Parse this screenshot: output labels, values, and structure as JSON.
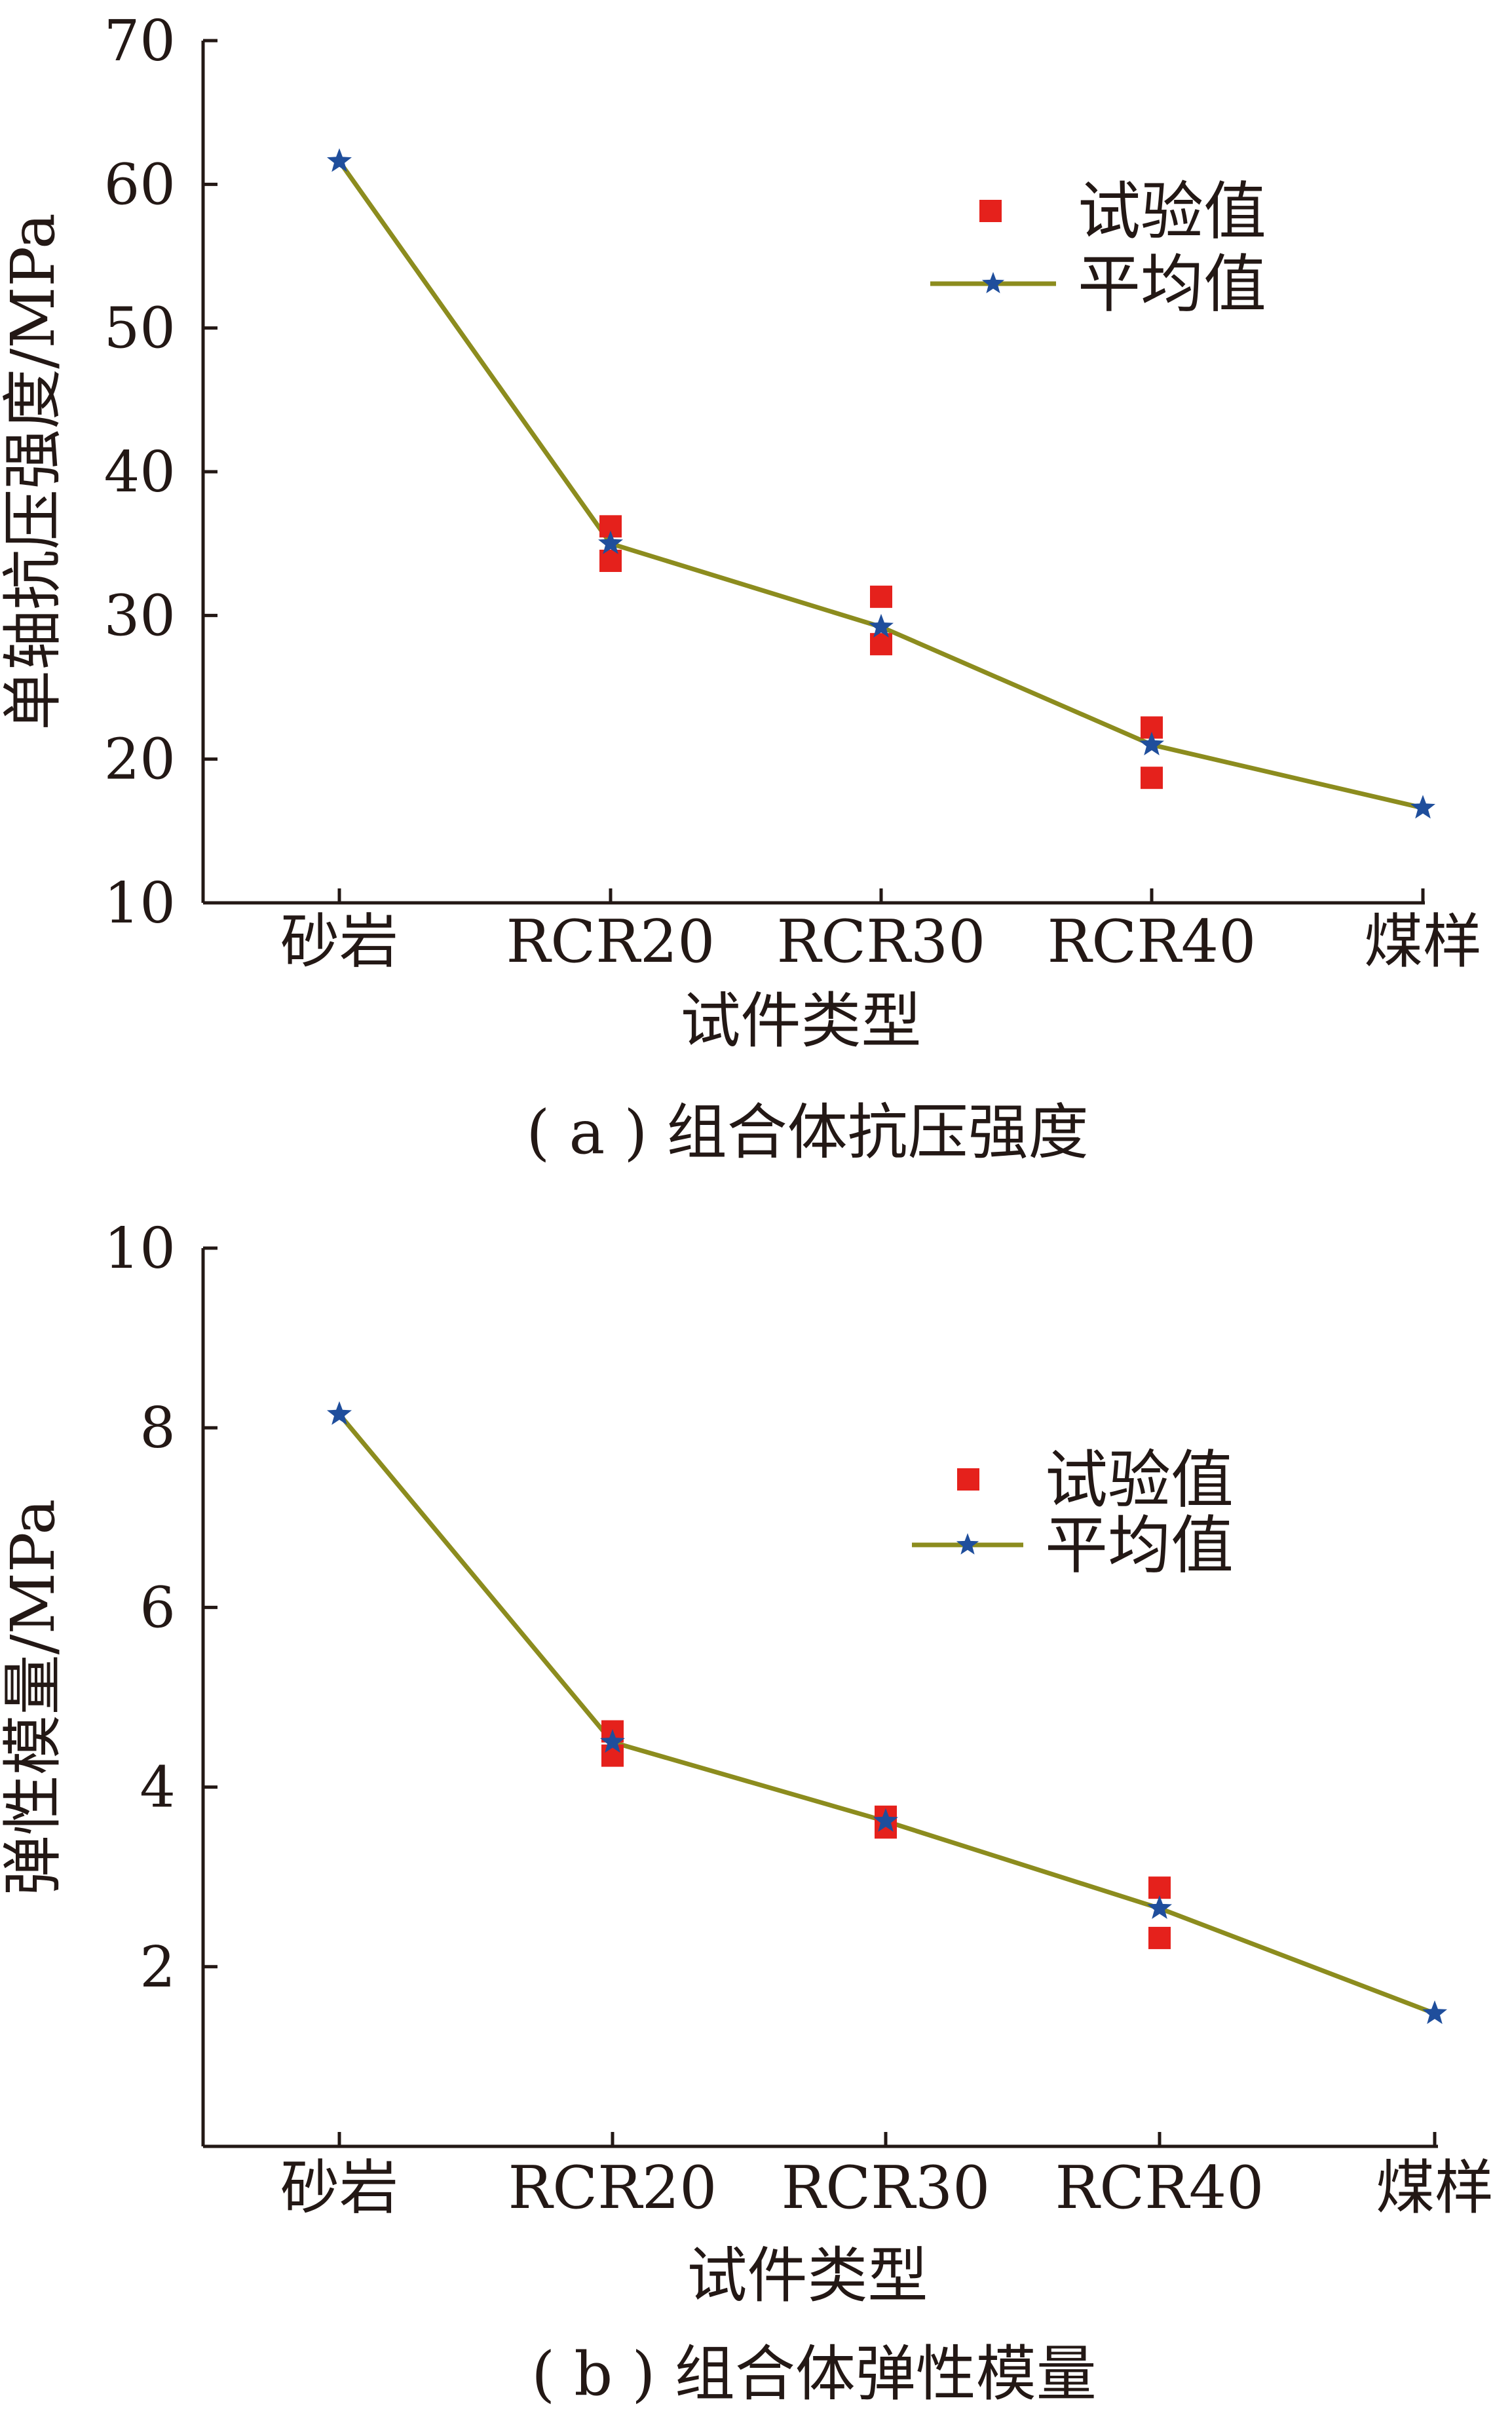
{
  "chart_data": [
    {
      "type": "line",
      "panel_label": "( a ) 组合体抗压强度",
      "xlabel": "试件类型",
      "ylabel": "单轴抗压强度/MPa",
      "categories": [
        "砂岩",
        "RCR20",
        "RCR30",
        "RCR40",
        "煤样"
      ],
      "yticks": [
        "10",
        "20",
        "30",
        "40",
        "50",
        "60",
        "70"
      ],
      "ylim": [
        10,
        70
      ],
      "legend": {
        "position": "top-right",
        "entries": [
          "试验值",
          "平均值"
        ]
      },
      "series": [
        {
          "name": "试验值",
          "kind": "scatter",
          "color": "#e5211c",
          "points": [
            {
              "category": "RCR20",
              "y": 36.2
            },
            {
              "category": "RCR20",
              "y": 33.8
            },
            {
              "category": "RCR30",
              "y": 31.3
            },
            {
              "category": "RCR30",
              "y": 28.0
            },
            {
              "category": "RCR40",
              "y": 22.2
            },
            {
              "category": "RCR40",
              "y": 18.7
            }
          ]
        },
        {
          "name": "平均值",
          "kind": "line",
          "color": "#8c8c1e",
          "marker_color": "#1f4e9c",
          "values": [
            61.6,
            35.0,
            29.2,
            21.0,
            16.6
          ]
        }
      ]
    },
    {
      "type": "line",
      "panel_label": "( b ) 组合体弹性模量",
      "xlabel": "试件类型",
      "ylabel": "弹性模量/MPa",
      "categories": [
        "砂岩",
        "RCR20",
        "RCR30",
        "RCR40",
        "煤样"
      ],
      "yticks": [
        "2",
        "4",
        "6",
        "8",
        "10"
      ],
      "ylim": [
        0,
        10
      ],
      "legend": {
        "position": "top-right",
        "entries": [
          "试验值",
          "平均值"
        ]
      },
      "series": [
        {
          "name": "试验值",
          "kind": "scatter",
          "color": "#e5211c",
          "points": [
            {
              "category": "RCR20",
              "y": 4.62
            },
            {
              "category": "RCR20",
              "y": 4.35
            },
            {
              "category": "RCR30",
              "y": 3.67
            },
            {
              "category": "RCR30",
              "y": 3.55
            },
            {
              "category": "RCR40",
              "y": 2.88
            },
            {
              "category": "RCR40",
              "y": 2.32
            }
          ]
        },
        {
          "name": "平均值",
          "kind": "line",
          "color": "#8c8c1e",
          "marker_color": "#1f4e9c",
          "values": [
            8.15,
            4.5,
            3.62,
            2.65,
            1.48
          ]
        }
      ]
    }
  ]
}
